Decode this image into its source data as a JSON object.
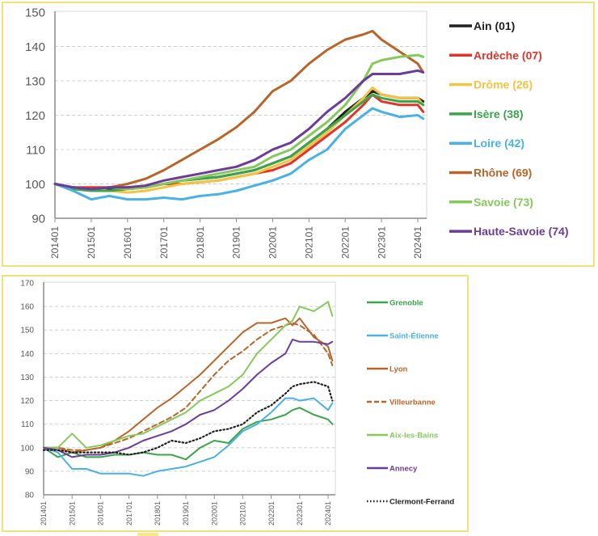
{
  "chart_data": [
    {
      "type": "line",
      "title": "",
      "xlabel": "",
      "ylabel": "",
      "ylim": [
        90,
        150
      ],
      "yticks": [
        "90",
        "100",
        "110",
        "120",
        "130",
        "140",
        "150"
      ],
      "xticks": [
        "201401",
        "201501",
        "201601",
        "201701",
        "201801",
        "201901",
        "202001",
        "202101",
        "202201",
        "202301",
        "202401"
      ],
      "grid": "horizontal dashed",
      "legend_position": "right",
      "x": [
        2014.0,
        2014.5,
        2015.0,
        2015.5,
        2016.0,
        2016.5,
        2017.0,
        2017.5,
        2018.0,
        2018.5,
        2019.0,
        2019.5,
        2020.0,
        2020.5,
        2021.0,
        2021.5,
        2022.0,
        2022.5,
        2022.75,
        2023.0,
        2023.5,
        2024.0,
        2024.15
      ],
      "series": [
        {
          "name": "Ain (01)",
          "color": "#1f1f1f",
          "values": [
            100,
            99,
            98.5,
            98.5,
            99,
            99,
            100,
            101,
            101.5,
            102,
            103,
            104,
            106,
            108,
            112,
            116,
            121,
            125,
            127,
            126,
            125,
            125,
            124
          ]
        },
        {
          "name": "Ardèche (07)",
          "color": "#e0352b",
          "values": [
            100,
            99,
            99,
            99,
            99,
            99,
            100,
            100,
            100.5,
            101,
            102,
            103,
            104,
            106,
            110,
            114,
            118,
            123,
            126,
            124,
            123,
            123,
            121
          ]
        },
        {
          "name": "Drôme (26)",
          "color": "#f5c342",
          "values": [
            100,
            99,
            98.5,
            98,
            97.5,
            98,
            99,
            100,
            100.5,
            101,
            102,
            103,
            105,
            107,
            111,
            115,
            120,
            125,
            128,
            126,
            125,
            125,
            123
          ]
        },
        {
          "name": "Isère (38)",
          "color": "#3aa54a",
          "values": [
            100,
            98.5,
            98,
            98,
            98.5,
            99,
            100,
            101,
            101.5,
            102,
            103,
            104,
            106,
            108,
            112,
            116,
            120,
            124,
            126,
            125,
            124,
            124,
            123
          ]
        },
        {
          "name": "Loire (42)",
          "color": "#49b1e4",
          "values": [
            100,
            98,
            95.5,
            96.5,
            95.5,
            95.5,
            96,
            95.5,
            96.5,
            97,
            98,
            99.5,
            101,
            103,
            107,
            110,
            116,
            120,
            122,
            121,
            119.5,
            120,
            119
          ]
        },
        {
          "name": "Rhône (69)",
          "color": "#b9652a",
          "values": [
            100,
            99,
            98.5,
            99,
            100,
            101.5,
            104,
            107,
            110,
            113,
            116.5,
            121,
            127,
            130,
            135,
            139,
            142,
            143.5,
            144.5,
            142,
            138.5,
            135,
            132.5
          ]
        },
        {
          "name": "Savoie (73)",
          "color": "#86c95b",
          "values": [
            100,
            99,
            98.5,
            99,
            98.5,
            99,
            100,
            101,
            102,
            103,
            104,
            105,
            108,
            110,
            114,
            118,
            123,
            130,
            135,
            136,
            137,
            137.5,
            137
          ]
        },
        {
          "name": "Haute-Savoie (74)",
          "color": "#6b3c98",
          "values": [
            100,
            99,
            98.5,
            99,
            99,
            99.5,
            101,
            102,
            103,
            104,
            105,
            107,
            110,
            112,
            116,
            121,
            125,
            130,
            132,
            132,
            132,
            133,
            132.5
          ]
        }
      ]
    },
    {
      "type": "line",
      "title": "",
      "xlabel": "",
      "ylabel": "",
      "ylim": [
        80,
        170
      ],
      "yticks": [
        "80",
        "90",
        "100",
        "110",
        "120",
        "130",
        "140",
        "150",
        "160",
        "170"
      ],
      "xticks": [
        "201401",
        "201501",
        "201601",
        "201701",
        "201801",
        "201901",
        "202001",
        "202101",
        "202201",
        "202301",
        "202401"
      ],
      "grid": "horizontal dashed",
      "legend_position": "right",
      "x": [
        2014.0,
        2014.5,
        2015.0,
        2015.5,
        2016.0,
        2016.5,
        2017.0,
        2017.5,
        2018.0,
        2018.5,
        2019.0,
        2019.5,
        2020.0,
        2020.5,
        2021.0,
        2021.5,
        2022.0,
        2022.5,
        2022.75,
        2023.0,
        2023.5,
        2024.0,
        2024.15
      ],
      "series": [
        {
          "name": "Grenoble",
          "color": "#3aa54a",
          "dash": "solid",
          "values": [
            100,
            96,
            98,
            96,
            96,
            97,
            97,
            98,
            97,
            97,
            95,
            100,
            103,
            102,
            108,
            111,
            112,
            114,
            116,
            117,
            114,
            112,
            110
          ]
        },
        {
          "name": "Saint-Étienne",
          "color": "#49b1e4",
          "dash": "solid",
          "values": [
            100,
            98,
            91,
            91,
            89,
            89,
            89,
            88,
            90,
            91,
            92,
            94,
            96,
            101,
            107,
            110,
            115,
            121,
            121,
            120,
            121,
            116,
            119
          ]
        },
        {
          "name": "Lyon",
          "color": "#b9652a",
          "dash": "solid",
          "values": [
            100,
            100,
            98,
            99,
            100,
            103,
            107,
            112,
            117,
            121,
            126,
            131,
            137,
            143,
            149,
            153,
            153,
            155,
            152,
            155,
            147,
            143,
            137
          ]
        },
        {
          "name": "Villeurbanne",
          "color": "#b9652a",
          "dash": "dashed",
          "values": [
            100,
            100,
            99,
            99,
            100,
            102,
            104,
            107,
            110,
            113,
            117,
            124,
            131,
            137,
            141,
            146,
            150,
            152,
            153,
            152,
            148,
            140,
            135
          ]
        },
        {
          "name": "Aix-les-Bains",
          "color": "#86c95b",
          "dash": "solid",
          "values": [
            100,
            100,
            106,
            100,
            101,
            103,
            105,
            106,
            109,
            112,
            115,
            120,
            123,
            126,
            131,
            140,
            146,
            152,
            154,
            160,
            158,
            162,
            156
          ]
        },
        {
          "name": "Annecy",
          "color": "#6b3c98",
          "dash": "solid",
          "values": [
            100,
            99,
            96,
            97,
            97,
            98,
            100,
            103,
            105,
            107,
            110,
            114,
            116,
            120,
            125,
            131,
            136,
            140,
            146,
            145,
            145,
            144,
            145
          ]
        },
        {
          "name": "Clermont-Ferrand",
          "color": "#1f1f1f",
          "dash": "dotted",
          "values": [
            99,
            99,
            98,
            98,
            98,
            98,
            97,
            98,
            100,
            103,
            102,
            104,
            107,
            108,
            110,
            115,
            118,
            123,
            126,
            127,
            128,
            126,
            120
          ]
        }
      ]
    }
  ]
}
